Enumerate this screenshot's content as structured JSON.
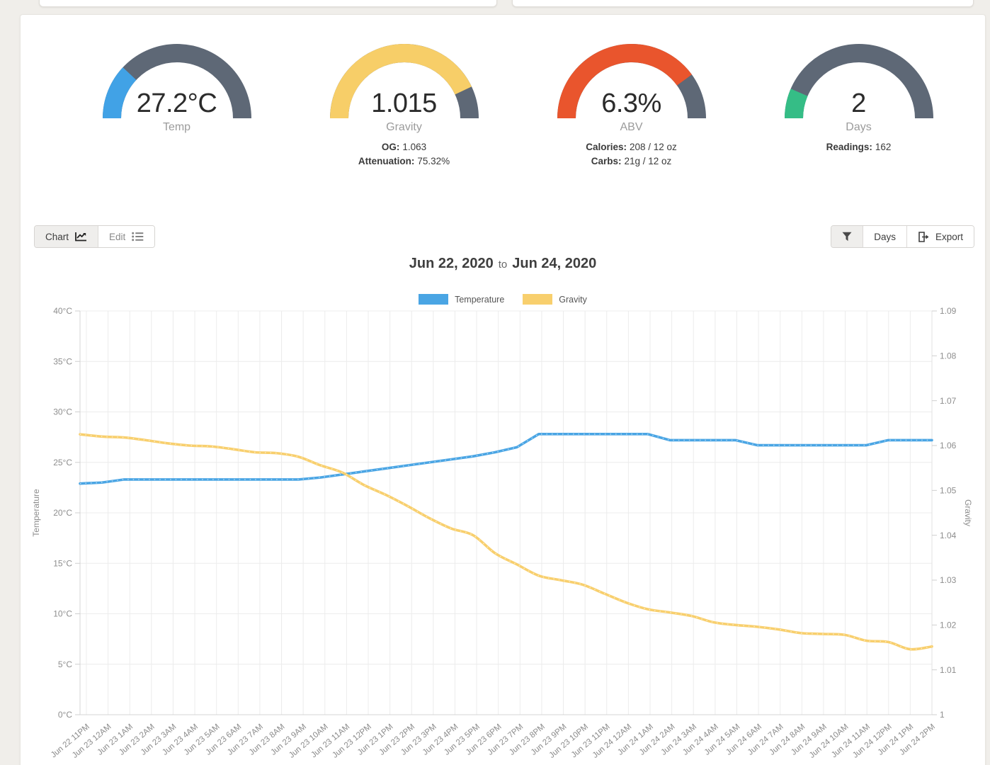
{
  "gauges": [
    {
      "value": "27.2°C",
      "label": "Temp",
      "fraction": 0.24,
      "color": "#41a2e6",
      "track_color": "#5e6876",
      "stats": []
    },
    {
      "value": "1.015",
      "label": "Gravity",
      "fraction": 0.86,
      "color": "#f7ce68",
      "track_color": "#5e6876",
      "stats": [
        {
          "label": "OG:",
          "value": "1.063"
        },
        {
          "label": "Attenuation:",
          "value": "75.32%"
        }
      ]
    },
    {
      "value": "6.3%",
      "label": "ABV",
      "fraction": 0.8,
      "color": "#e9552d",
      "track_color": "#5e6876",
      "stats": [
        {
          "label": "Calories:",
          "value": "208 / 12 oz"
        },
        {
          "label": "Carbs:",
          "value": "21g / 12 oz"
        }
      ]
    },
    {
      "value": "2",
      "label": "Days",
      "fraction": 0.13,
      "color": "#35bd86",
      "track_color": "#5e6876",
      "stats": [
        {
          "label": "Readings:",
          "value": "162"
        }
      ]
    }
  ],
  "toolbar": {
    "chart": "Chart",
    "edit": "Edit",
    "days": "Days",
    "export": "Export"
  },
  "chart_data": {
    "type": "line",
    "title": {
      "from": "Jun 22, 2020",
      "to_word": "to",
      "to": "Jun 24, 2020"
    },
    "legend_position": "top",
    "grid": true,
    "x_labels": [
      "Jun 22 11PM",
      "Jun 23 12AM",
      "Jun 23 1AM",
      "Jun 23 2AM",
      "Jun 23 3AM",
      "Jun 23 4AM",
      "Jun 23 5AM",
      "Jun 23 6AM",
      "Jun 23 7AM",
      "Jun 23 8AM",
      "Jun 23 9AM",
      "Jun 23 10AM",
      "Jun 23 11AM",
      "Jun 23 12PM",
      "Jun 23 1PM",
      "Jun 23 2PM",
      "Jun 23 3PM",
      "Jun 23 4PM",
      "Jun 23 5PM",
      "Jun 23 6PM",
      "Jun 23 7PM",
      "Jun 23 8PM",
      "Jun 23 9PM",
      "Jun 23 10PM",
      "Jun 23 11PM",
      "Jun 24 12AM",
      "Jun 24 1AM",
      "Jun 24 2AM",
      "Jun 24 3AM",
      "Jun 24 4AM",
      "Jun 24 5AM",
      "Jun 24 6AM",
      "Jun 24 7AM",
      "Jun 24 8AM",
      "Jun 24 9AM",
      "Jun 24 10AM",
      "Jun 24 11AM",
      "Jun 24 12PM",
      "Jun 24 1PM",
      "Jun 24 2PM"
    ],
    "left_axis": {
      "title": "Temperature",
      "min": 0,
      "max": 40,
      "tick_step": 5,
      "unit": "°C",
      "tick_labels": [
        "40°C",
        "35°C",
        "30°C",
        "25°C",
        "20°C",
        "15°C",
        "10°C",
        "5°C",
        "0°C"
      ]
    },
    "right_axis": {
      "title": "Gravity",
      "min": 1.0,
      "max": 1.09,
      "tick_step": 0.01,
      "tick_labels": [
        "1.09",
        "1.08",
        "1.07",
        "1.06",
        "1.05",
        "1.04",
        "1.03",
        "1.02",
        "1.01",
        "1"
      ]
    },
    "series": [
      {
        "name": "Temperature",
        "color": "#4aa5e4",
        "axis": "left",
        "smooth": false,
        "values": [
          22.9,
          23.0,
          23.3,
          23.3,
          23.3,
          23.3,
          23.3,
          23.3,
          23.3,
          23.3,
          23.3,
          23.5,
          23.8,
          24.1,
          24.4,
          24.7,
          25.0,
          25.3,
          25.6,
          26.0,
          26.5,
          27.8,
          27.8,
          27.8,
          27.8,
          27.8,
          27.8,
          27.2,
          27.2,
          27.2,
          27.2,
          26.7,
          26.7,
          26.7,
          26.7,
          26.7,
          26.7,
          27.2,
          27.2,
          27.2
        ]
      },
      {
        "name": "Gravity",
        "color": "#f8cf6d",
        "axis": "right",
        "smooth": true,
        "values": [
          1.0625,
          1.062,
          1.0618,
          1.0612,
          1.0605,
          1.06,
          1.0598,
          1.0592,
          1.0585,
          1.0583,
          1.0575,
          1.0556,
          1.054,
          1.0512,
          1.049,
          1.0465,
          1.0438,
          1.0415,
          1.04,
          1.036,
          1.0335,
          1.031,
          1.03,
          1.029,
          1.027,
          1.025,
          1.0235,
          1.0228,
          1.022,
          1.0206,
          1.02,
          1.0196,
          1.019,
          1.0182,
          1.018,
          1.0178,
          1.0165,
          1.0162,
          1.0146,
          1.0152
        ]
      }
    ]
  }
}
